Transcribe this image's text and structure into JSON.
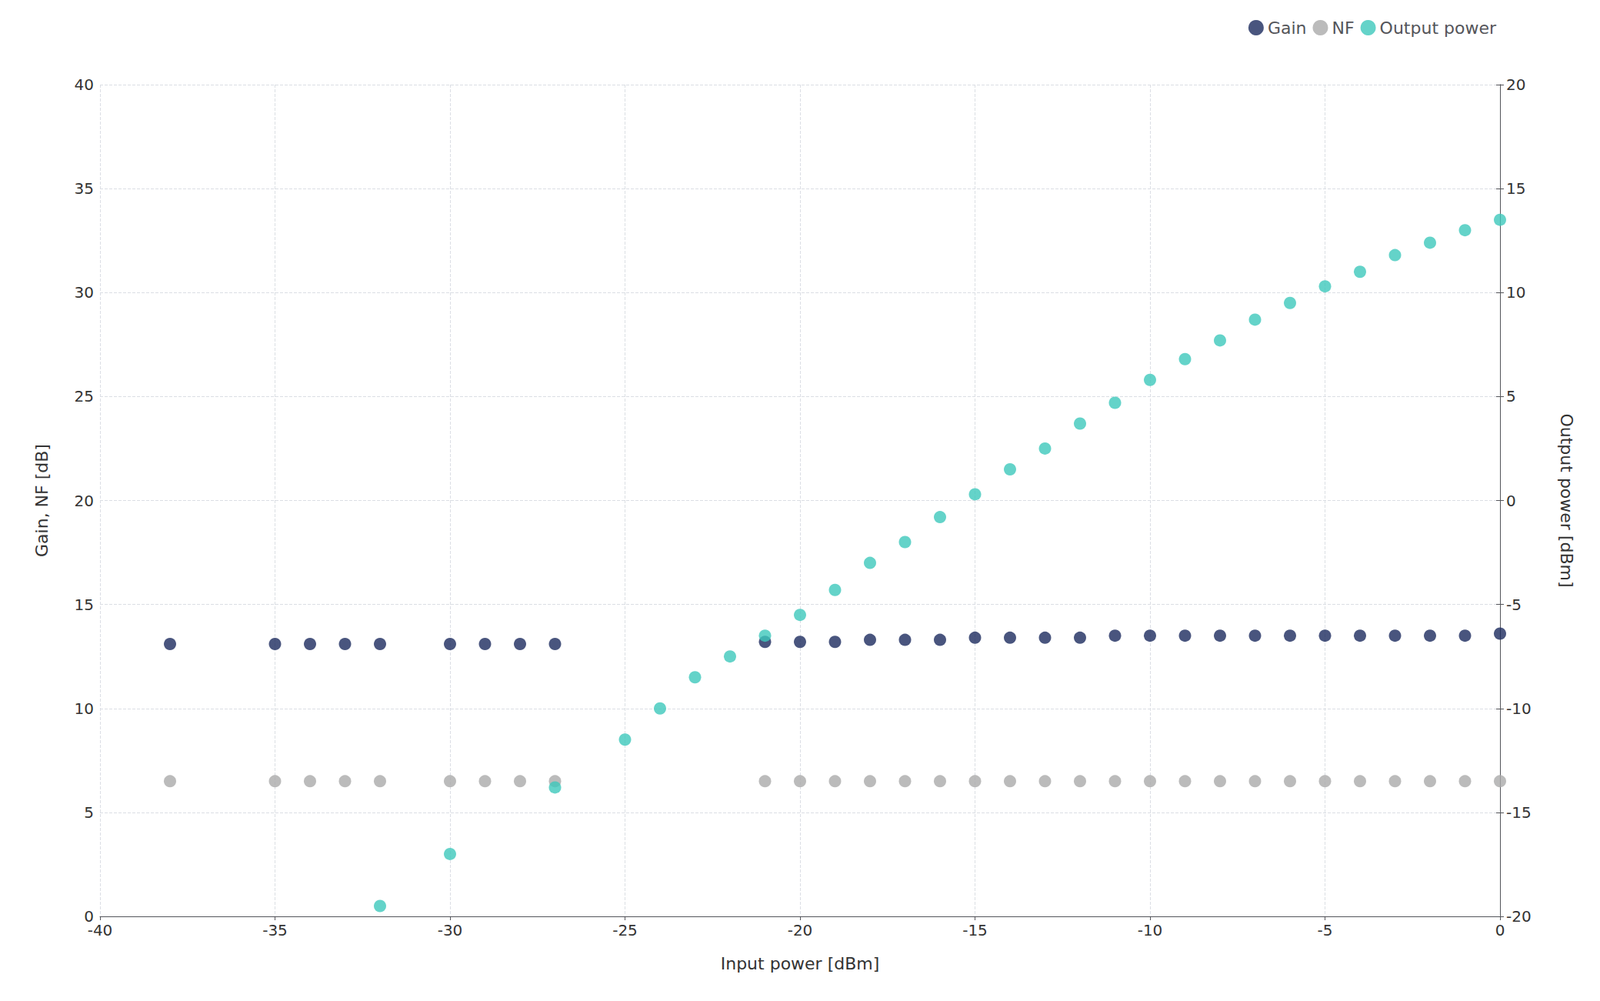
{
  "chart_data": {
    "type": "scatter",
    "xlabel": "Input power [dBm]",
    "ylabel": "Gain, NF [dB]",
    "y2label": "Output power [dBm]",
    "xlim": [
      -40,
      0
    ],
    "xticks": [
      -40,
      -35,
      -30,
      -25,
      -20,
      -15,
      -10,
      -5,
      0
    ],
    "ylim": [
      0,
      40
    ],
    "yticks": [
      0,
      5,
      10,
      15,
      20,
      25,
      30,
      35,
      40
    ],
    "y2lim": [
      -20,
      20
    ],
    "y2ticks": [
      -20,
      -15,
      -10,
      -5,
      0,
      5,
      10,
      15,
      20
    ],
    "grid": true,
    "legend": "upper right",
    "series": [
      {
        "name": "Gain",
        "color": "#1c2b5e",
        "x": [
          -38,
          -35,
          -34,
          -33,
          -32,
          -30,
          -29,
          -28,
          -27,
          -21,
          -20,
          -19,
          -18,
          -17,
          -16,
          -15,
          -14,
          -13,
          -12,
          -11,
          -10,
          -9,
          -8,
          -7,
          -6,
          -5,
          -4,
          -3,
          -2,
          -1,
          0
        ],
        "values": [
          13.1,
          13.1,
          13.1,
          13.1,
          13.1,
          13.1,
          13.1,
          13.1,
          13.1,
          13.2,
          13.2,
          13.2,
          13.3,
          13.3,
          13.3,
          13.4,
          13.4,
          13.4,
          13.4,
          13.5,
          13.5,
          13.5,
          13.5,
          13.5,
          13.5,
          13.5,
          13.5,
          13.5,
          13.5,
          13.5,
          13.6
        ]
      },
      {
        "name": "NF",
        "color": "#aaaaaa",
        "x": [
          -38,
          -35,
          -34,
          -33,
          -32,
          -30,
          -29,
          -28,
          -27,
          -21,
          -20,
          -19,
          -18,
          -17,
          -16,
          -15,
          -14,
          -13,
          -12,
          -11,
          -10,
          -9,
          -8,
          -7,
          -6,
          -5,
          -4,
          -3,
          -2,
          -1,
          0
        ],
        "values": [
          6.5,
          6.5,
          6.5,
          6.5,
          6.5,
          6.5,
          6.5,
          6.5,
          6.5,
          6.5,
          6.5,
          6.5,
          6.5,
          6.5,
          6.5,
          6.5,
          6.5,
          6.5,
          6.5,
          6.5,
          6.5,
          6.5,
          6.5,
          6.5,
          6.5,
          6.5,
          6.5,
          6.5,
          6.5,
          6.5,
          6.5
        ]
      },
      {
        "name": "Output power",
        "color": "#3dc8bc",
        "axis": "y2",
        "x": [
          -32,
          -30,
          -27,
          -25,
          -24,
          -23,
          -22,
          -21,
          -20,
          -19,
          -18,
          -17,
          -16,
          -15,
          -14,
          -13,
          -12,
          -11,
          -10,
          -9,
          -8,
          -7,
          -6,
          -5,
          -4,
          -3,
          -2,
          -1,
          0
        ],
        "values": [
          -19.5,
          -17.0,
          -13.8,
          -11.5,
          -10.0,
          -8.5,
          -7.5,
          -6.5,
          -5.5,
          -4.3,
          -3.0,
          -2.0,
          -0.8,
          0.3,
          1.5,
          2.5,
          3.7,
          4.7,
          5.8,
          6.8,
          7.7,
          8.7,
          9.5,
          10.3,
          11.0,
          11.8,
          12.4,
          13.0,
          13.5
        ]
      }
    ]
  }
}
